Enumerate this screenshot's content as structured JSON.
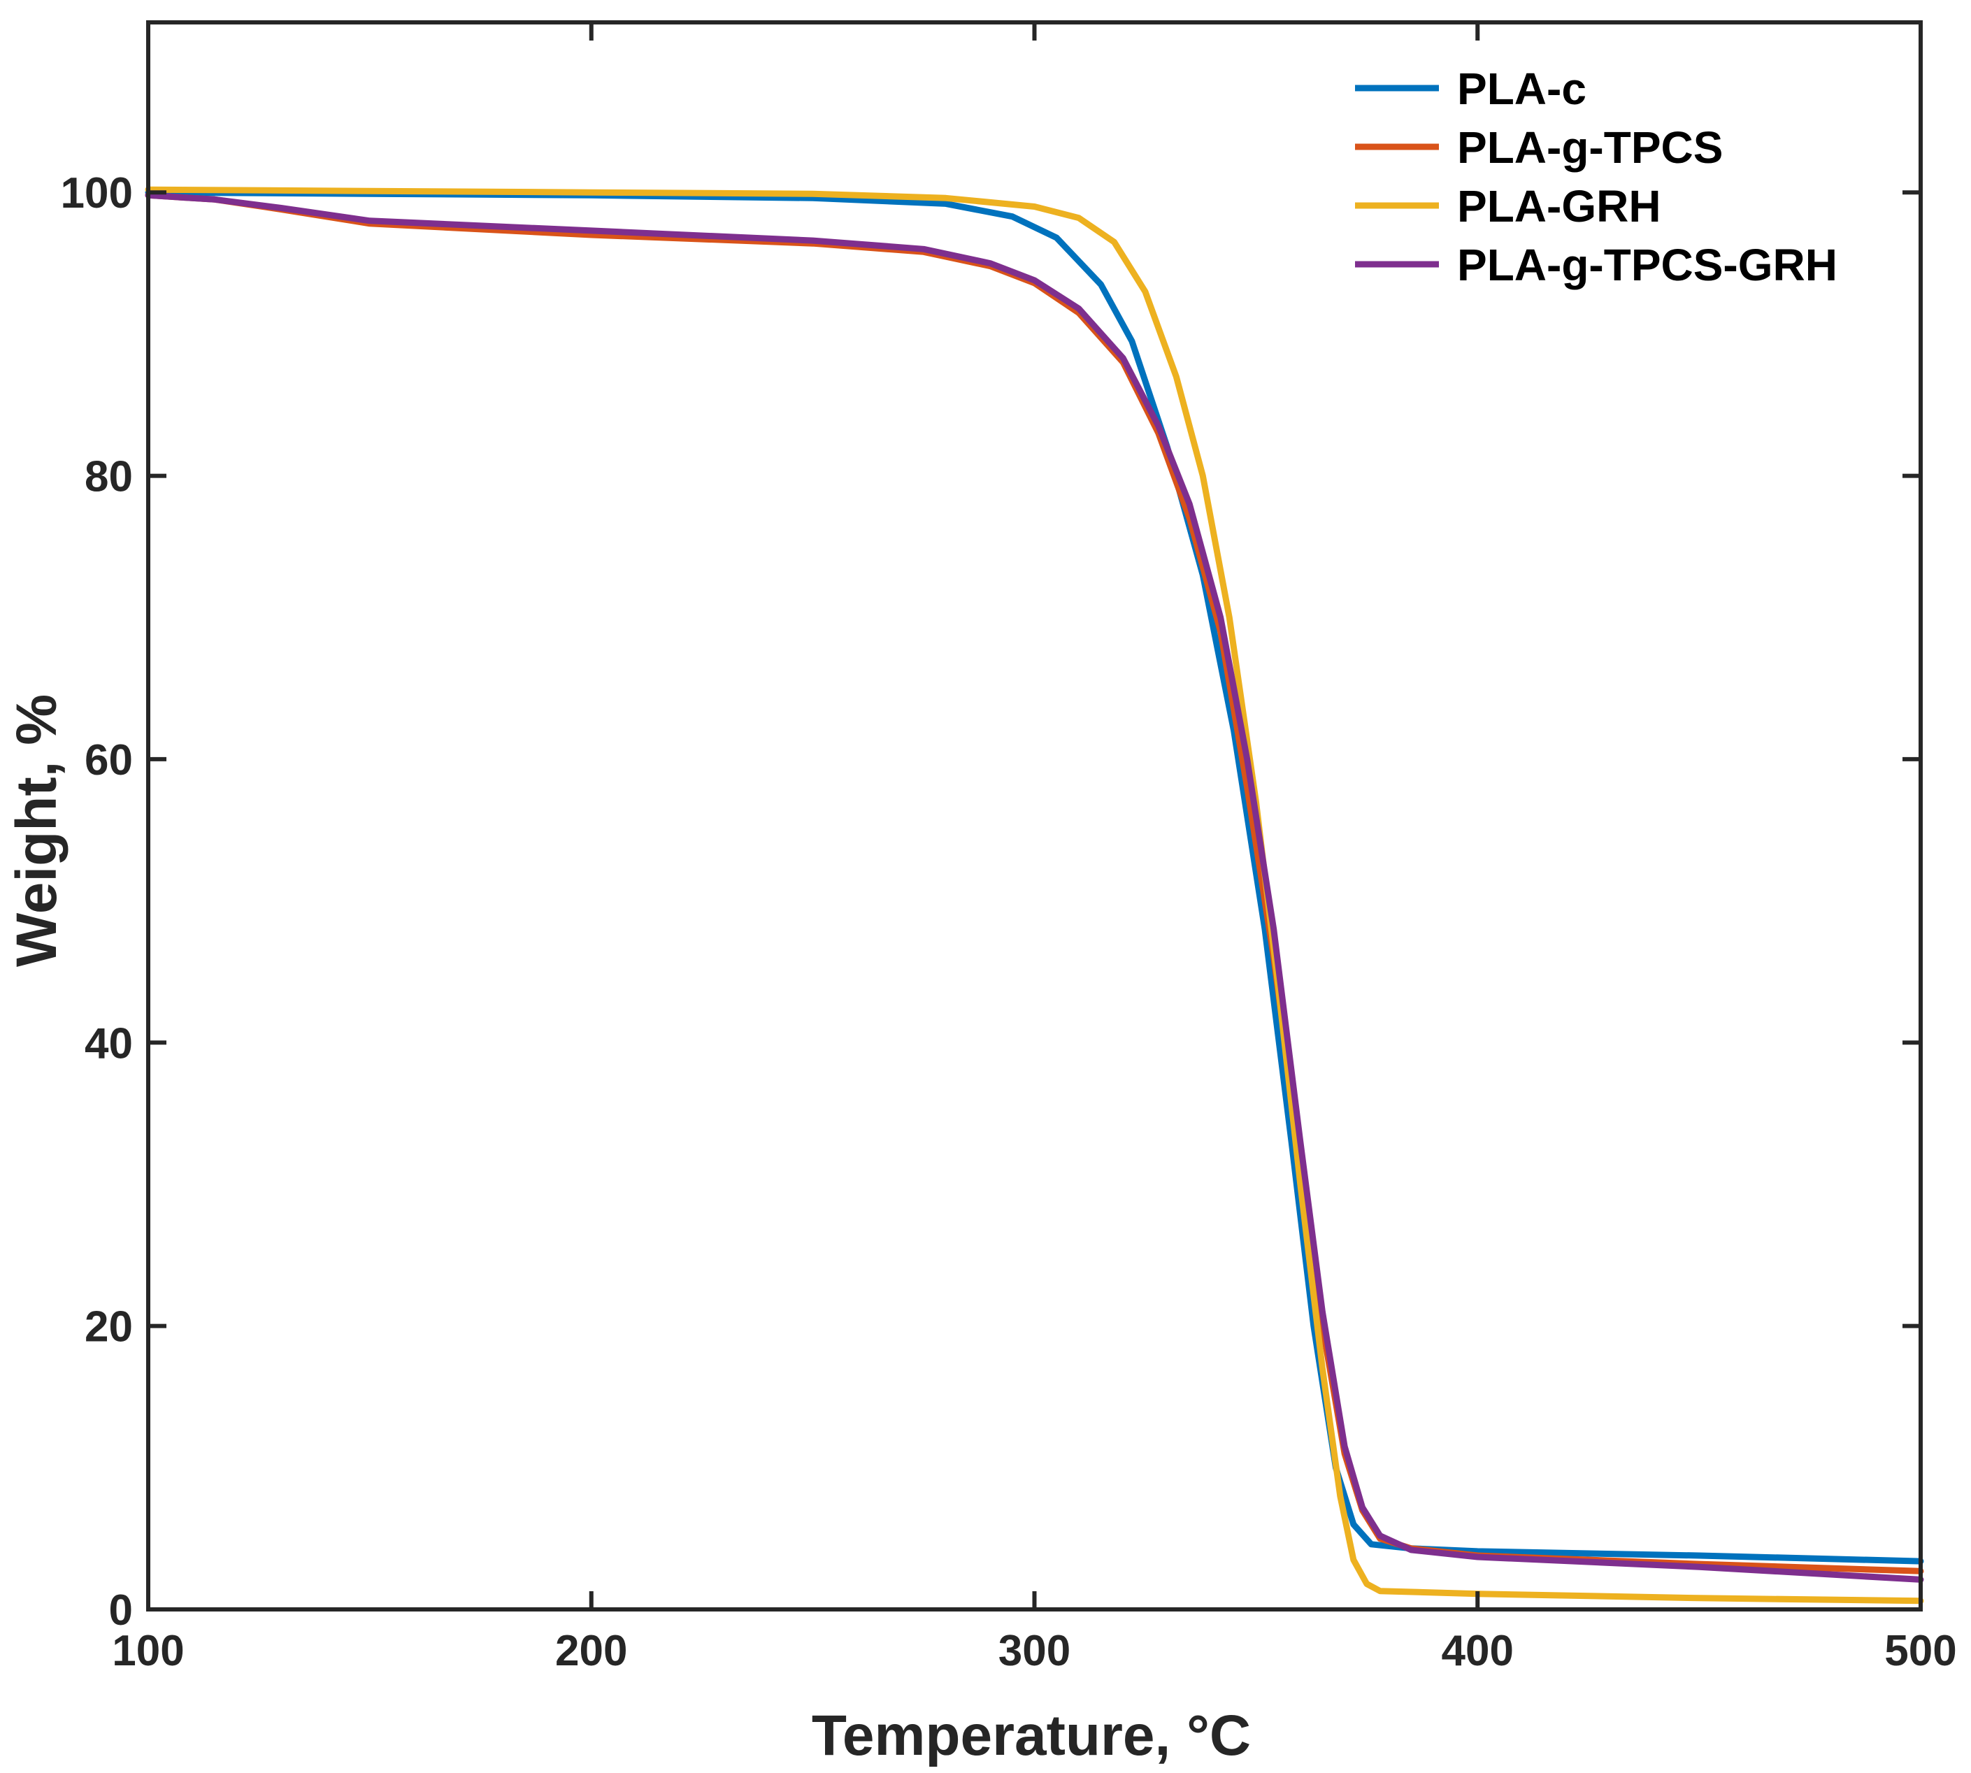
{
  "chart_data": {
    "type": "line",
    "title": "",
    "xlabel": "Temperature, °C",
    "ylabel": "Weight, %",
    "xlim": [
      100,
      500
    ],
    "ylim": [
      0,
      112
    ],
    "xticks": [
      100,
      200,
      300,
      400,
      500
    ],
    "yticks": [
      0,
      20,
      40,
      60,
      80,
      100
    ],
    "xtick_labels": [
      "100",
      "200",
      "300",
      "400",
      "500"
    ],
    "ytick_labels": [
      "0",
      "20",
      "40",
      "60",
      "80",
      "100"
    ],
    "grid": false,
    "legend_position": "top-right",
    "series": [
      {
        "name": "PLA-c",
        "color": "#0072BD",
        "points": [
          [
            100,
            100
          ],
          [
            150,
            99.9
          ],
          [
            200,
            99.8
          ],
          [
            250,
            99.6
          ],
          [
            280,
            99.2
          ],
          [
            295,
            98.3
          ],
          [
            305,
            96.8
          ],
          [
            315,
            93.5
          ],
          [
            322,
            89.5
          ],
          [
            330,
            82
          ],
          [
            338,
            73
          ],
          [
            345,
            62
          ],
          [
            352,
            48
          ],
          [
            358,
            33
          ],
          [
            363,
            20
          ],
          [
            368,
            10
          ],
          [
            372,
            6
          ],
          [
            376,
            4.6
          ],
          [
            385,
            4.3
          ],
          [
            400,
            4.1
          ],
          [
            450,
            3.8
          ],
          [
            500,
            3.4
          ]
        ]
      },
      {
        "name": "PLA-g-TPCS",
        "color": "#D95319",
        "points": [
          [
            100,
            99.8
          ],
          [
            115,
            99.5
          ],
          [
            130,
            98.8
          ],
          [
            150,
            97.8
          ],
          [
            200,
            97.0
          ],
          [
            250,
            96.4
          ],
          [
            275,
            95.8
          ],
          [
            290,
            94.8
          ],
          [
            300,
            93.6
          ],
          [
            310,
            91.5
          ],
          [
            320,
            88
          ],
          [
            328,
            83
          ],
          [
            335,
            77
          ],
          [
            342,
            69
          ],
          [
            348,
            58
          ],
          [
            354,
            46
          ],
          [
            360,
            32
          ],
          [
            365,
            20
          ],
          [
            370,
            11
          ],
          [
            374,
            7
          ],
          [
            378,
            5
          ],
          [
            385,
            4.3
          ],
          [
            400,
            3.8
          ],
          [
            450,
            3.2
          ],
          [
            500,
            2.7
          ]
        ]
      },
      {
        "name": "PLA-GRH",
        "color": "#EDB120",
        "points": [
          [
            100,
            100.2
          ],
          [
            150,
            100.1
          ],
          [
            200,
            100.0
          ],
          [
            250,
            99.9
          ],
          [
            280,
            99.6
          ],
          [
            300,
            99.0
          ],
          [
            310,
            98.2
          ],
          [
            318,
            96.5
          ],
          [
            325,
            93
          ],
          [
            332,
            87
          ],
          [
            338,
            80
          ],
          [
            344,
            70
          ],
          [
            350,
            57
          ],
          [
            355,
            44
          ],
          [
            360,
            30
          ],
          [
            365,
            17
          ],
          [
            369,
            8
          ],
          [
            372,
            3.5
          ],
          [
            375,
            1.8
          ],
          [
            378,
            1.3
          ],
          [
            400,
            1.1
          ],
          [
            450,
            0.8
          ],
          [
            500,
            0.6
          ]
        ]
      },
      {
        "name": "PLA-g-TPCS-GRH",
        "color": "#7E2F8E",
        "points": [
          [
            100,
            99.8
          ],
          [
            115,
            99.5
          ],
          [
            130,
            98.9
          ],
          [
            150,
            98.0
          ],
          [
            200,
            97.3
          ],
          [
            250,
            96.6
          ],
          [
            275,
            96.0
          ],
          [
            290,
            95.0
          ],
          [
            300,
            93.8
          ],
          [
            310,
            91.8
          ],
          [
            320,
            88.3
          ],
          [
            328,
            83.5
          ],
          [
            335,
            78
          ],
          [
            342,
            70
          ],
          [
            348,
            60
          ],
          [
            354,
            48
          ],
          [
            360,
            33
          ],
          [
            365,
            21
          ],
          [
            370,
            11.5
          ],
          [
            374,
            7.2
          ],
          [
            378,
            5.2
          ],
          [
            385,
            4.2
          ],
          [
            400,
            3.7
          ],
          [
            450,
            3.0
          ],
          [
            500,
            2.1
          ]
        ]
      }
    ]
  }
}
